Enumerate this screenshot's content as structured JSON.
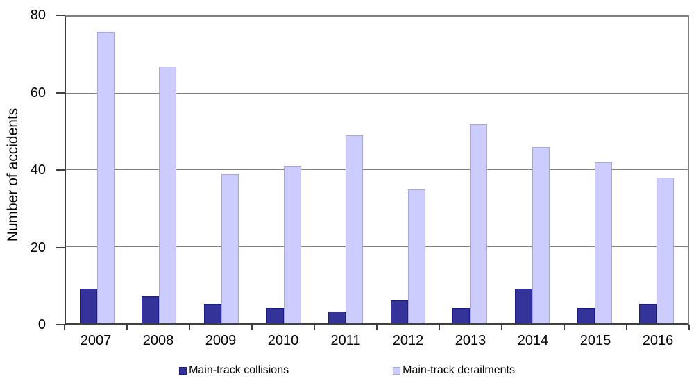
{
  "chart_data": {
    "type": "bar",
    "title": "",
    "ylabel": "Number of accidents",
    "xlabel": "",
    "ylim": [
      0,
      80
    ],
    "yticks": [
      0,
      20,
      40,
      60,
      80
    ],
    "grid": true,
    "legend_position": "bottom-center",
    "categories": [
      "2007",
      "2008",
      "2009",
      "2010",
      "2011",
      "2012",
      "2013",
      "2014",
      "2015",
      "2016"
    ],
    "series": [
      {
        "name": "Main-track collisions",
        "slug": "main-track-collisions",
        "fill": "#333399",
        "border": "#1a1a8c",
        "values": [
          9,
          7,
          5,
          4,
          3,
          6,
          4,
          9,
          4,
          5
        ]
      },
      {
        "name": "Main-track derailments",
        "slug": "main-track-derailments",
        "fill": "#ccccff",
        "border": "#a6a6d9",
        "values": [
          76,
          67,
          39,
          41,
          49,
          35,
          52,
          46,
          42,
          38
        ]
      }
    ],
    "colors": {
      "background": "#ffffff",
      "text": "#000000",
      "axis": "#404040",
      "grid": "#808080",
      "plot_border": "#808080"
    }
  }
}
